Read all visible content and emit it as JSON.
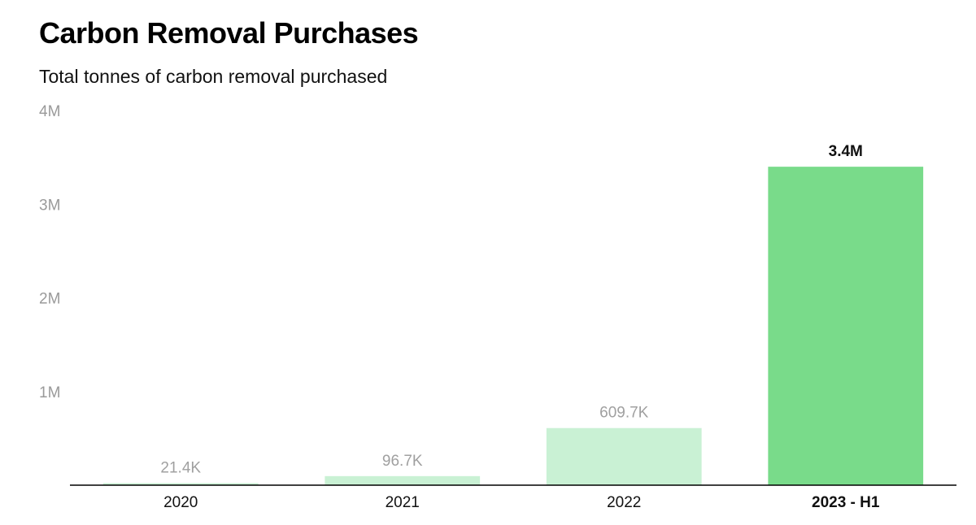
{
  "chart_data": {
    "type": "bar",
    "title": "Carbon Removal Purchases",
    "subtitle": "Total tonnes of carbon removal purchased",
    "xlabel": "",
    "ylabel": "",
    "categories": [
      "2020",
      "2021",
      "2022",
      "2023 - H1"
    ],
    "values": [
      21400,
      96700,
      609700,
      3400000
    ],
    "data_labels": [
      "21.4K",
      "96.7K",
      "609.7K",
      "3.4M"
    ],
    "highlight": [
      false,
      false,
      false,
      true
    ],
    "ylim": [
      0,
      4000000
    ],
    "yticks": [
      1000000,
      2000000,
      3000000,
      4000000
    ],
    "ytick_labels": [
      "1M",
      "2M",
      "3M",
      "4M"
    ],
    "grid": false,
    "legend": "none",
    "colors": {
      "bar": "#c9f1d4",
      "bar_highlight": "#79db8a",
      "axis": "#000000"
    }
  }
}
